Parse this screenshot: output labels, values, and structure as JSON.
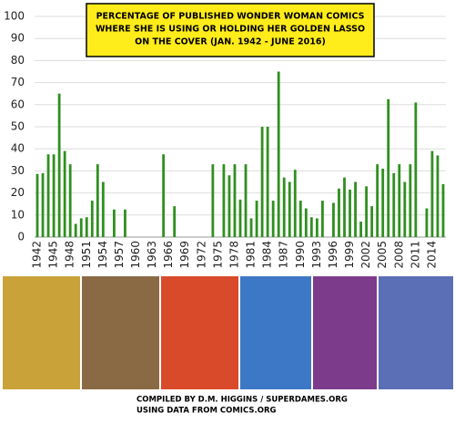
{
  "chart_data": {
    "type": "bar",
    "title": [
      "PERCENTAGE OF PUBLISHED WONDER WOMAN COMICS",
      "WHERE SHE IS USING OR HOLDING HER GOLDEN LASSO",
      "ON THE COVER (JAN. 1942 - JUNE 2016)"
    ],
    "categories": [
      "1942",
      null,
      null,
      "1945",
      null,
      null,
      "1948",
      null,
      null,
      "1951",
      null,
      null,
      "1954",
      null,
      null,
      "1957",
      null,
      null,
      "1960",
      null,
      null,
      "1963",
      null,
      null,
      "1966",
      null,
      null,
      "1969",
      null,
      null,
      "1972",
      null,
      null,
      "1975",
      null,
      null,
      "1978",
      null,
      null,
      "1981",
      null,
      null,
      "1984",
      null,
      null,
      "1987",
      null,
      null,
      "1990",
      null,
      null,
      "1993",
      null,
      null,
      "1996",
      null,
      null,
      "1999",
      null,
      null,
      "2002",
      null,
      null,
      "2005",
      null,
      null,
      "2008",
      null,
      null,
      "2011",
      null,
      null,
      "2014",
      null,
      null
    ],
    "values": [
      28.6,
      29,
      37.5,
      37.5,
      65,
      39,
      33,
      6,
      8.5,
      9,
      16.5,
      33,
      25,
      0,
      12.5,
      0,
      12.5,
      0,
      0,
      0,
      0,
      0,
      0,
      37.5,
      0,
      14,
      0,
      0,
      0,
      0,
      0,
      0,
      33,
      0,
      33,
      28,
      33,
      17,
      33,
      8.5,
      16.5,
      50,
      50,
      16.5,
      75,
      27,
      25,
      30.5,
      16.5,
      13,
      9,
      8.5,
      16.5,
      0,
      15.5,
      22,
      27,
      21.5,
      25,
      7,
      23,
      14,
      33,
      31,
      62.5,
      29,
      33,
      25,
      33,
      61,
      0,
      13,
      39,
      37,
      24
    ],
    "color": "#2f8f1f",
    "ylim": [
      0,
      100
    ],
    "yticks": [
      0,
      10,
      20,
      30,
      40,
      50,
      60,
      70,
      80,
      90,
      100
    ],
    "grid": true,
    "notes": [
      "COMPILED BY D.M. HIGGINS / SUPERDAMES.ORG",
      "USING DATA FROM COMICS.ORG"
    ]
  }
}
